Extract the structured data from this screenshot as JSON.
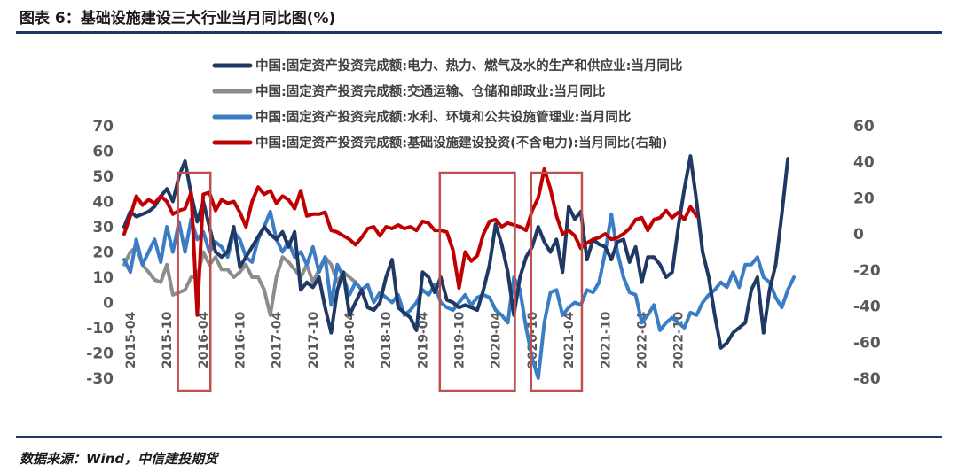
{
  "figure": {
    "title": "图表 6：基础设施建设三大行业当月同比图(%)",
    "source": "数据来源：Wind，中信建投期货"
  },
  "colors": {
    "rule": "#1f3864",
    "highlight_box": "#c0504d",
    "series": [
      "#1f3864",
      "#8c8c8c",
      "#3b7dc4",
      "#c00000"
    ]
  },
  "chart_data": {
    "type": "line",
    "title": "",
    "xlabel": "",
    "ylabel": "",
    "ylim": [
      -30,
      70
    ],
    "y2lim": [
      -80,
      60
    ],
    "yticks": [
      "70",
      "60",
      "50",
      "40",
      "30",
      "20",
      "10",
      "0",
      "-10",
      "-20",
      "-30"
    ],
    "y2ticks": [
      "60",
      "40",
      "20",
      "0",
      "-20",
      "-40",
      "-60",
      "-80"
    ],
    "xticks": [
      "2015-04",
      "2015-10",
      "2016-04",
      "2016-10",
      "2017-04",
      "2017-10",
      "2018-04",
      "2018-10",
      "2019-04",
      "2019-10",
      "2020-04",
      "2020-10",
      "2021-04",
      "2021-10",
      "2022-04",
      "2022-10"
    ],
    "x_start": "2015-03",
    "grid": false,
    "legend_position": "top",
    "highlights": [
      {
        "from": "2016-01",
        "to": "2016-04"
      },
      {
        "from": "2019-08",
        "to": "2020-06"
      },
      {
        "from": "2020-11",
        "to": "2021-05"
      }
    ],
    "series": [
      {
        "name": "中国:固定资产投资完成额:电力、热力、燃气及水的生产和供应业:当月同比",
        "axis": "left",
        "values": [
          30,
          36,
          34,
          35,
          36,
          38,
          42,
          45,
          40,
          50,
          56,
          43,
          32,
          40,
          30,
          20,
          18,
          20,
          30,
          14,
          18,
          22,
          26,
          30,
          27,
          25,
          28,
          22,
          28,
          5,
          8,
          6,
          10,
          -2,
          -12,
          5,
          12,
          -5,
          0,
          5,
          -2,
          -3,
          0,
          10,
          17,
          -2,
          -4,
          -6,
          -11,
          12,
          10,
          4,
          10,
          1,
          0,
          -2,
          -1,
          -2,
          -3,
          5,
          15,
          31,
          23,
          12,
          -5,
          10,
          18,
          22,
          30,
          24,
          20,
          25,
          12,
          38,
          33,
          36,
          17,
          25,
          23,
          22,
          17,
          24,
          25,
          16,
          22,
          8,
          18,
          18,
          15,
          10,
          12,
          30,
          45,
          58,
          40,
          20,
          10,
          -5,
          -18,
          -16,
          -12,
          -10,
          -8,
          5,
          10,
          -12,
          5,
          15,
          35,
          57
        ]
      },
      {
        "name": "中国:固定资产投资完成额:交通运输、仓储和邮政业:当月同比",
        "axis": "left",
        "values": [
          15,
          20,
          22,
          15,
          12,
          9,
          8,
          15,
          3,
          4,
          5,
          10,
          10,
          20,
          15,
          18,
          13,
          13,
          10,
          12,
          15,
          10,
          10,
          5,
          -5,
          10,
          18,
          16,
          13,
          10,
          15,
          8,
          13,
          18,
          15,
          8,
          12,
          10,
          8
        ]
      },
      {
        "name": "中国:固定资产投资完成额:水利、环境和公共设施管理业:当月同比",
        "axis": "left",
        "values": [
          17,
          12,
          25,
          15,
          20,
          25,
          16,
          30,
          20,
          32,
          20,
          33,
          25,
          28,
          20,
          24,
          22,
          18,
          28,
          25,
          18,
          16,
          25,
          30,
          36,
          25,
          20,
          24,
          18,
          20,
          15,
          22,
          12,
          18,
          -1,
          15,
          10,
          3,
          8,
          5,
          7,
          0,
          4,
          2,
          0,
          3,
          -5,
          -3,
          0,
          5,
          3,
          7,
          0,
          -2,
          -3,
          0,
          3,
          -1,
          2,
          3,
          2,
          -3,
          -5,
          -8,
          10,
          5,
          -10,
          -22,
          -30,
          -8,
          4,
          5,
          -5,
          -2,
          0,
          -1,
          5,
          4,
          8,
          20,
          35,
          20,
          10,
          4,
          3,
          -8,
          -5,
          -1,
          -11,
          -8,
          -6,
          -8,
          -10,
          -4,
          -5,
          0,
          3,
          5,
          8,
          6,
          12,
          6,
          15,
          15,
          18,
          10,
          8,
          2,
          -2,
          5,
          10
        ]
      },
      {
        "name": "中国:固定资产投资完成额:基础设施建设投资(不含电力):当月同比(右轴)",
        "axis": "right",
        "values": [
          0,
          10,
          21,
          16,
          19,
          17,
          21,
          18,
          11,
          13,
          14,
          23,
          -45,
          22,
          23,
          13,
          19,
          17,
          18,
          12,
          4,
          18,
          26,
          22,
          24,
          17,
          21,
          19,
          14,
          24,
          10,
          11,
          11,
          12,
          2,
          1,
          -1,
          -3,
          -6,
          -2,
          3,
          4,
          -1,
          4,
          3,
          5,
          3,
          4,
          2,
          7,
          6,
          2,
          2,
          1,
          -9,
          -30,
          -10,
          -15,
          -12,
          0,
          7,
          8,
          4,
          6,
          5,
          4,
          2,
          13,
          20,
          36,
          25,
          10,
          0,
          2,
          -1,
          -8,
          -5,
          -3,
          -2,
          0,
          -3,
          -2,
          0,
          3,
          8,
          9,
          2,
          8,
          9,
          13,
          9,
          12,
          8,
          15,
          10
        ]
      }
    ]
  }
}
